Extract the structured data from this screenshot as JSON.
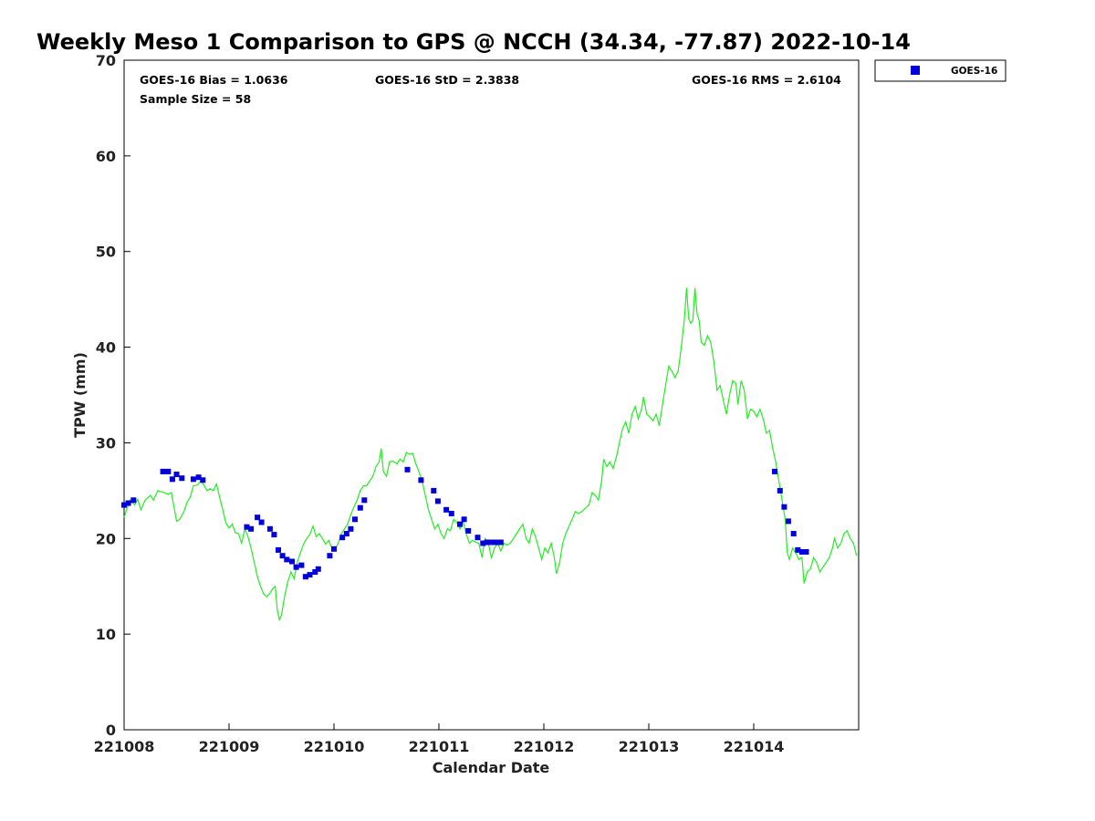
{
  "chart_data": {
    "type": "scatter",
    "title": "Weekly Meso 1 Comparison to GPS @ NCCH (34.34, -77.87) 2022-10-14",
    "xlabel": "Calendar Date",
    "ylabel": "TPW (mm)",
    "xlim": [
      0,
      7
    ],
    "ylim": [
      0,
      70
    ],
    "x_ticks": [
      {
        "value": 0,
        "label": "221008"
      },
      {
        "value": 1,
        "label": "221009"
      },
      {
        "value": 2,
        "label": "221010"
      },
      {
        "value": 3,
        "label": "221011"
      },
      {
        "value": 4,
        "label": "221012"
      },
      {
        "value": 5,
        "label": "221013"
      },
      {
        "value": 6,
        "label": "221014"
      }
    ],
    "y_ticks": [
      0,
      10,
      20,
      30,
      40,
      50,
      60,
      70
    ],
    "grid": false,
    "legend": {
      "position": "top-right"
    },
    "stats": {
      "bias": "GOES-16 Bias = 1.0636",
      "std": "GOES-16 StD = 2.3838",
      "rms": "GOES-16 RMS = 2.6104",
      "sample": "Sample Size = 58"
    },
    "series": [
      {
        "name": "GOES-16",
        "kind": "scatter",
        "color": "#0000dd",
        "points": [
          [
            0.0,
            23.5
          ],
          [
            0.04,
            23.7
          ],
          [
            0.09,
            24.0
          ],
          [
            0.37,
            27.0
          ],
          [
            0.42,
            27.0
          ],
          [
            0.46,
            26.2
          ],
          [
            0.5,
            26.7
          ],
          [
            0.55,
            26.3
          ],
          [
            0.66,
            26.2
          ],
          [
            0.71,
            26.4
          ],
          [
            0.75,
            26.1
          ],
          [
            1.17,
            21.2
          ],
          [
            1.21,
            21.0
          ],
          [
            1.27,
            22.2
          ],
          [
            1.31,
            21.7
          ],
          [
            1.39,
            21.0
          ],
          [
            1.43,
            20.4
          ],
          [
            1.47,
            18.8
          ],
          [
            1.51,
            18.2
          ],
          [
            1.55,
            17.8
          ],
          [
            1.6,
            17.6
          ],
          [
            1.64,
            17.0
          ],
          [
            1.69,
            17.2
          ],
          [
            1.73,
            16.0
          ],
          [
            1.77,
            16.2
          ],
          [
            1.82,
            16.5
          ],
          [
            1.85,
            16.8
          ],
          [
            1.96,
            18.2
          ],
          [
            2.0,
            18.9
          ],
          [
            2.08,
            20.1
          ],
          [
            2.12,
            20.5
          ],
          [
            2.16,
            21.0
          ],
          [
            2.2,
            22.0
          ],
          [
            2.25,
            23.2
          ],
          [
            2.29,
            24.0
          ],
          [
            2.7,
            27.2
          ],
          [
            2.83,
            26.1
          ],
          [
            2.95,
            25.0
          ],
          [
            2.99,
            23.9
          ],
          [
            3.07,
            23.0
          ],
          [
            3.12,
            22.6
          ],
          [
            3.2,
            21.5
          ],
          [
            3.24,
            22.0
          ],
          [
            3.28,
            20.8
          ],
          [
            3.37,
            20.1
          ],
          [
            3.42,
            19.5
          ],
          [
            3.46,
            19.6
          ],
          [
            3.51,
            19.6
          ],
          [
            3.55,
            19.6
          ],
          [
            3.59,
            19.6
          ],
          [
            6.2,
            27.0
          ],
          [
            6.25,
            25.0
          ],
          [
            6.29,
            23.3
          ],
          [
            6.33,
            21.8
          ],
          [
            6.38,
            20.5
          ],
          [
            6.42,
            18.8
          ],
          [
            6.46,
            18.6
          ],
          [
            6.5,
            18.6
          ]
        ]
      },
      {
        "name": "",
        "kind": "line",
        "color": "#22ee22",
        "points": [
          [
            0.0,
            22.2
          ],
          [
            0.03,
            23.2
          ],
          [
            0.06,
            24.0
          ],
          [
            0.1,
            23.5
          ],
          [
            0.13,
            24.1
          ],
          [
            0.16,
            23.0
          ],
          [
            0.2,
            24.0
          ],
          [
            0.25,
            24.5
          ],
          [
            0.28,
            24.0
          ],
          [
            0.32,
            25.0
          ],
          [
            0.38,
            24.8
          ],
          [
            0.42,
            24.6
          ],
          [
            0.45,
            24.8
          ],
          [
            0.48,
            23.0
          ],
          [
            0.5,
            21.8
          ],
          [
            0.53,
            22.0
          ],
          [
            0.57,
            22.8
          ],
          [
            0.6,
            23.8
          ],
          [
            0.63,
            24.3
          ],
          [
            0.66,
            25.5
          ],
          [
            0.7,
            25.6
          ],
          [
            0.73,
            26.0
          ],
          [
            0.76,
            25.6
          ],
          [
            0.79,
            25.0
          ],
          [
            0.82,
            25.2
          ],
          [
            0.85,
            25.0
          ],
          [
            0.88,
            25.7
          ],
          [
            0.91,
            24.3
          ],
          [
            0.94,
            23.0
          ],
          [
            0.97,
            21.6
          ],
          [
            1.0,
            21.1
          ],
          [
            1.03,
            21.5
          ],
          [
            1.06,
            20.6
          ],
          [
            1.09,
            20.5
          ],
          [
            1.12,
            19.5
          ],
          [
            1.15,
            21.0
          ],
          [
            1.18,
            20.2
          ],
          [
            1.21,
            19.0
          ],
          [
            1.24,
            17.5
          ],
          [
            1.27,
            16.0
          ],
          [
            1.3,
            15.0
          ],
          [
            1.33,
            14.2
          ],
          [
            1.36,
            13.9
          ],
          [
            1.39,
            14.3
          ],
          [
            1.42,
            14.8
          ],
          [
            1.44,
            15.0
          ],
          [
            1.46,
            12.5
          ],
          [
            1.48,
            11.5
          ],
          [
            1.5,
            12.0
          ],
          [
            1.53,
            14.0
          ],
          [
            1.56,
            15.5
          ],
          [
            1.59,
            16.5
          ],
          [
            1.62,
            15.8
          ],
          [
            1.65,
            17.5
          ],
          [
            1.68,
            18.5
          ],
          [
            1.71,
            19.4
          ],
          [
            1.74,
            20.0
          ],
          [
            1.77,
            20.4
          ],
          [
            1.8,
            21.3
          ],
          [
            1.83,
            20.2
          ],
          [
            1.86,
            20.5
          ],
          [
            1.89,
            20.0
          ],
          [
            1.92,
            19.4
          ],
          [
            1.95,
            19.8
          ],
          [
            1.98,
            19.0
          ],
          [
            2.01,
            18.8
          ],
          [
            2.04,
            19.5
          ],
          [
            2.07,
            20.5
          ],
          [
            2.1,
            21.0
          ],
          [
            2.13,
            21.5
          ],
          [
            2.16,
            22.5
          ],
          [
            2.19,
            23.3
          ],
          [
            2.22,
            24.0
          ],
          [
            2.25,
            25.0
          ],
          [
            2.28,
            25.5
          ],
          [
            2.31,
            25.5
          ],
          [
            2.34,
            26.0
          ],
          [
            2.37,
            26.5
          ],
          [
            2.4,
            27.5
          ],
          [
            2.43,
            28.0
          ],
          [
            2.45,
            29.4
          ],
          [
            2.47,
            27.0
          ],
          [
            2.5,
            26.5
          ],
          [
            2.53,
            28.0
          ],
          [
            2.56,
            28.1
          ],
          [
            2.6,
            27.8
          ],
          [
            2.63,
            28.3
          ],
          [
            2.66,
            28.0
          ],
          [
            2.69,
            29.0
          ],
          [
            2.72,
            28.8
          ],
          [
            2.75,
            28.9
          ],
          [
            2.78,
            27.8
          ],
          [
            2.81,
            27.0
          ],
          [
            2.84,
            26.0
          ],
          [
            2.87,
            24.5
          ],
          [
            2.9,
            23.0
          ],
          [
            2.93,
            22.0
          ],
          [
            2.96,
            21.0
          ],
          [
            2.99,
            21.5
          ],
          [
            3.02,
            20.5
          ],
          [
            3.05,
            20.0
          ],
          [
            3.08,
            21.0
          ],
          [
            3.11,
            20.8
          ],
          [
            3.14,
            22.0
          ],
          [
            3.17,
            21.7
          ],
          [
            3.2,
            21.0
          ],
          [
            3.23,
            21.8
          ],
          [
            3.26,
            20.5
          ],
          [
            3.29,
            19.5
          ],
          [
            3.32,
            19.8
          ],
          [
            3.35,
            19.6
          ],
          [
            3.38,
            19.5
          ],
          [
            3.41,
            18.0
          ],
          [
            3.44,
            20.0
          ],
          [
            3.47,
            19.6
          ],
          [
            3.5,
            18.0
          ],
          [
            3.53,
            19.0
          ],
          [
            3.56,
            19.5
          ],
          [
            3.59,
            18.7
          ],
          [
            3.62,
            19.5
          ],
          [
            3.65,
            19.3
          ],
          [
            3.68,
            19.5
          ],
          [
            3.71,
            20.0
          ],
          [
            3.74,
            20.5
          ],
          [
            3.77,
            21.0
          ],
          [
            3.8,
            21.5
          ],
          [
            3.83,
            20.0
          ],
          [
            3.86,
            19.5
          ],
          [
            3.89,
            21.0
          ],
          [
            3.92,
            20.2
          ],
          [
            3.95,
            19.0
          ],
          [
            3.98,
            17.8
          ],
          [
            4.01,
            19.0
          ],
          [
            4.04,
            18.5
          ],
          [
            4.07,
            19.5
          ],
          [
            4.1,
            18.0
          ],
          [
            4.12,
            16.3
          ],
          [
            4.15,
            17.5
          ],
          [
            4.18,
            19.5
          ],
          [
            4.21,
            20.5
          ],
          [
            4.24,
            21.3
          ],
          [
            4.27,
            22.0
          ],
          [
            4.3,
            22.8
          ],
          [
            4.33,
            22.6
          ],
          [
            4.36,
            22.8
          ],
          [
            4.4,
            23.2
          ],
          [
            4.43,
            23.5
          ],
          [
            4.46,
            24.8
          ],
          [
            4.49,
            24.5
          ],
          [
            4.52,
            24.0
          ],
          [
            4.55,
            26.0
          ],
          [
            4.57,
            28.3
          ],
          [
            4.6,
            27.5
          ],
          [
            4.63,
            28.0
          ],
          [
            4.66,
            27.3
          ],
          [
            4.69,
            28.5
          ],
          [
            4.72,
            30.0
          ],
          [
            4.75,
            31.5
          ],
          [
            4.78,
            32.2
          ],
          [
            4.81,
            31.0
          ],
          [
            4.84,
            33.0
          ],
          [
            4.87,
            33.8
          ],
          [
            4.9,
            32.5
          ],
          [
            4.93,
            33.5
          ],
          [
            4.95,
            34.8
          ],
          [
            4.98,
            33.0
          ],
          [
            5.01,
            32.7
          ],
          [
            5.04,
            32.3
          ],
          [
            5.07,
            33.0
          ],
          [
            5.1,
            31.8
          ],
          [
            5.13,
            34.0
          ],
          [
            5.16,
            36.0
          ],
          [
            5.19,
            38.0
          ],
          [
            5.22,
            37.5
          ],
          [
            5.25,
            36.8
          ],
          [
            5.28,
            37.5
          ],
          [
            5.31,
            40.0
          ],
          [
            5.34,
            43.0
          ],
          [
            5.36,
            46.2
          ],
          [
            5.38,
            43.0
          ],
          [
            5.4,
            42.5
          ],
          [
            5.42,
            42.8
          ],
          [
            5.44,
            46.2
          ],
          [
            5.46,
            43.5
          ],
          [
            5.48,
            42.8
          ],
          [
            5.5,
            40.5
          ],
          [
            5.53,
            40.2
          ],
          [
            5.56,
            41.2
          ],
          [
            5.59,
            40.5
          ],
          [
            5.62,
            38.5
          ],
          [
            5.65,
            35.5
          ],
          [
            5.68,
            36.0
          ],
          [
            5.71,
            34.5
          ],
          [
            5.74,
            33.0
          ],
          [
            5.77,
            35.0
          ],
          [
            5.8,
            36.5
          ],
          [
            5.83,
            36.2
          ],
          [
            5.85,
            34.0
          ],
          [
            5.88,
            36.5
          ],
          [
            5.91,
            35.5
          ],
          [
            5.94,
            32.5
          ],
          [
            5.97,
            33.5
          ],
          [
            6.0,
            33.3
          ],
          [
            6.03,
            32.7
          ],
          [
            6.06,
            33.5
          ],
          [
            6.09,
            32.5
          ],
          [
            6.12,
            31.0
          ],
          [
            6.15,
            31.3
          ],
          [
            6.18,
            29.5
          ],
          [
            6.21,
            28.0
          ],
          [
            6.24,
            26.0
          ],
          [
            6.27,
            24.0
          ],
          [
            6.3,
            22.0
          ],
          [
            6.32,
            18.5
          ],
          [
            6.34,
            17.8
          ],
          [
            6.37,
            19.0
          ],
          [
            6.4,
            18.5
          ],
          [
            6.43,
            17.8
          ],
          [
            6.46,
            18.0
          ],
          [
            6.48,
            15.3
          ],
          [
            6.51,
            16.5
          ],
          [
            6.54,
            16.8
          ],
          [
            6.57,
            18.0
          ],
          [
            6.6,
            17.5
          ],
          [
            6.63,
            16.5
          ],
          [
            6.66,
            17.0
          ],
          [
            6.69,
            17.5
          ],
          [
            6.72,
            18.0
          ],
          [
            6.75,
            19.0
          ],
          [
            6.77,
            20.0
          ],
          [
            6.8,
            19.0
          ],
          [
            6.83,
            19.5
          ],
          [
            6.86,
            20.5
          ],
          [
            6.89,
            20.8
          ],
          [
            6.92,
            20.0
          ],
          [
            6.95,
            19.5
          ],
          [
            6.98,
            18.2
          ]
        ]
      }
    ]
  }
}
